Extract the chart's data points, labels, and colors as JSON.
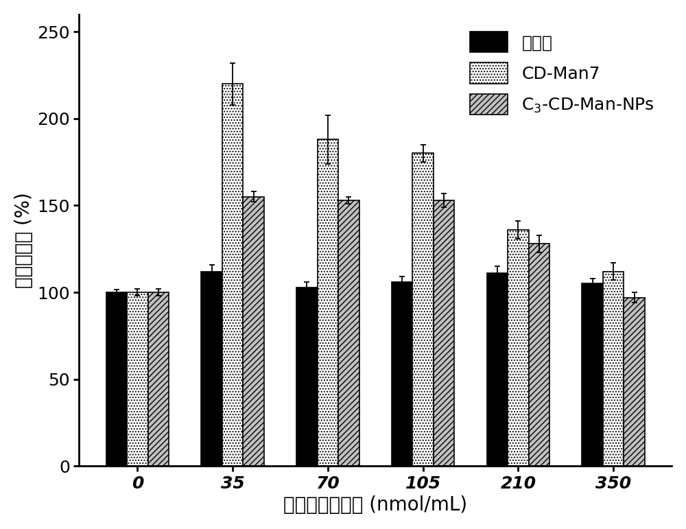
{
  "categories": [
    "0",
    "35",
    "70",
    "105",
    "210",
    "350"
  ],
  "series": {
    "mannose": {
      "label": "甘露糖",
      "color": "#000000",
      "facecolor": "#000000",
      "hatch": "",
      "values": [
        100,
        112,
        103,
        106,
        111,
        105
      ],
      "errors": [
        1.5,
        4,
        3,
        3,
        4,
        3
      ]
    },
    "cd_man7": {
      "label": "CD-Man7",
      "color": "#ffffff",
      "facecolor": "#ffffff",
      "hatch": "....",
      "values": [
        100,
        220,
        188,
        180,
        136,
        112
      ],
      "errors": [
        2,
        12,
        14,
        5,
        5,
        5
      ]
    },
    "c3_cd_man_nps": {
      "label": "C$_3$-CD-Man-NPs",
      "color": "#c0c0c0",
      "facecolor": "#c0c0c0",
      "hatch": "////",
      "values": [
        100,
        155,
        153,
        153,
        128,
        97
      ],
      "errors": [
        2,
        3,
        2,
        4,
        5,
        3
      ]
    }
  },
  "xlabel": "甘露糖基团浓度 (nmol/mL)",
  "ylabel": "细胞存活率 (%)",
  "ylim": [
    0,
    260
  ],
  "yticks": [
    0,
    50,
    100,
    150,
    200,
    250
  ],
  "bar_width": 0.22,
  "label_fontsize": 20,
  "tick_fontsize": 18,
  "legend_fontsize": 18,
  "background_color": "#ffffff"
}
